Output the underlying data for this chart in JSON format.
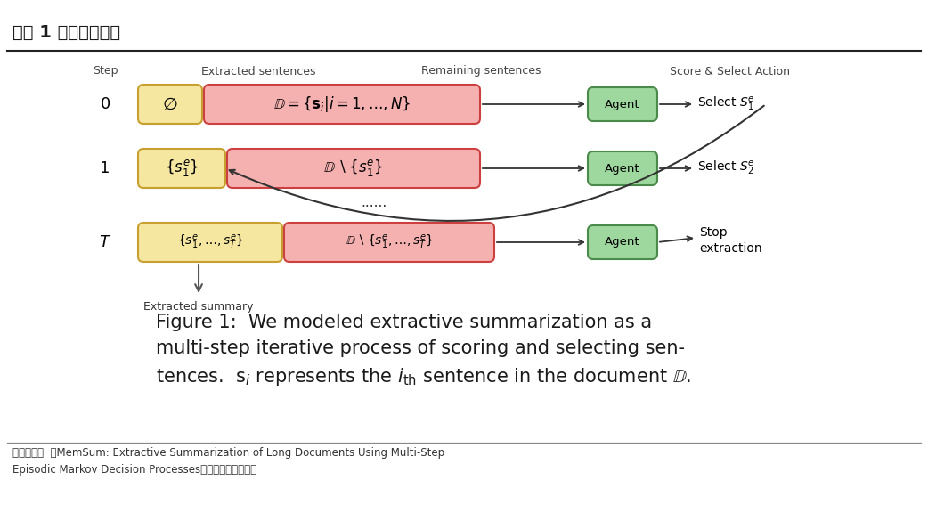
{
  "title": "图表 1 模型迭代步骤",
  "bg_color": "#ffffff",
  "title_color": "#1a1a1a",
  "yellow_color": "#f5e6a0",
  "yellow_border": "#c8a030",
  "pink_color": "#f5b0b0",
  "pink_border": "#cc4040",
  "green_color": "#9ed89e",
  "green_border": "#4a8a4a",
  "source_line1": "资料来源：  《MemSum: Extractive Summarization of Long Documents Using Multi-Step",
  "source_line2": "Episodic Markov Decision Processes》，华安证券研究所"
}
